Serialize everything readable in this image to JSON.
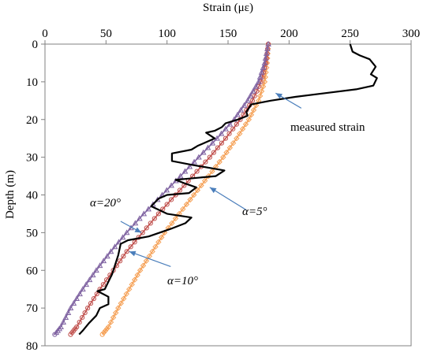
{
  "chart_data": {
    "type": "line",
    "title": "",
    "xlabel": "Strain (με)",
    "ylabel": "Depth (m)",
    "xlim": [
      0,
      300
    ],
    "ylim": [
      0,
      80
    ],
    "y_inverted": true,
    "x_axis_position": "top",
    "x_ticks": [
      0,
      50,
      100,
      150,
      200,
      250,
      300
    ],
    "y_ticks": [
      0,
      10,
      20,
      30,
      40,
      50,
      60,
      70,
      80
    ],
    "grid": false,
    "legend": "none",
    "series": [
      {
        "name": "measured strain",
        "color": "#000000",
        "marker": "none",
        "points": [
          [
            250,
            0
          ],
          [
            252,
            2
          ],
          [
            258,
            3
          ],
          [
            266,
            4
          ],
          [
            271,
            6
          ],
          [
            267,
            8
          ],
          [
            272,
            9
          ],
          [
            269,
            11
          ],
          [
            255,
            12
          ],
          [
            230,
            13
          ],
          [
            205,
            14
          ],
          [
            185,
            15
          ],
          [
            169,
            16
          ],
          [
            165,
            18
          ],
          [
            166,
            19
          ],
          [
            158,
            20
          ],
          [
            148,
            21
          ],
          [
            145,
            22
          ],
          [
            139,
            23
          ],
          [
            132,
            23.5
          ],
          [
            139,
            25
          ],
          [
            132,
            26
          ],
          [
            125,
            27
          ],
          [
            120,
            28
          ],
          [
            104,
            29
          ],
          [
            104,
            31
          ],
          [
            120,
            32
          ],
          [
            147,
            33.5
          ],
          [
            140,
            35
          ],
          [
            107,
            36
          ],
          [
            115,
            37
          ],
          [
            124,
            38
          ],
          [
            118,
            39.5
          ],
          [
            100,
            40
          ],
          [
            93,
            41
          ],
          [
            87,
            43
          ],
          [
            100,
            45
          ],
          [
            120,
            46
          ],
          [
            115,
            47.5
          ],
          [
            103,
            49
          ],
          [
            85,
            51
          ],
          [
            68,
            52
          ],
          [
            62,
            53
          ],
          [
            60,
            56
          ],
          [
            58,
            58
          ],
          [
            55,
            61
          ],
          [
            52,
            63
          ],
          [
            49,
            65
          ],
          [
            43,
            65.5
          ],
          [
            52,
            67
          ],
          [
            52,
            69
          ],
          [
            45,
            70
          ],
          [
            42,
            72
          ],
          [
            36,
            74
          ],
          [
            31,
            76
          ],
          [
            28,
            77
          ]
        ]
      },
      {
        "name": "α=5°",
        "color": "#f5a055",
        "marker": "diamond",
        "points": [
          [
            183,
            0
          ],
          [
            182,
            5
          ],
          [
            180,
            10
          ],
          [
            175,
            15
          ],
          [
            167,
            20
          ],
          [
            157,
            25
          ],
          [
            146,
            30
          ],
          [
            134,
            35
          ],
          [
            122,
            40
          ],
          [
            110,
            45
          ],
          [
            98,
            50
          ],
          [
            88,
            55
          ],
          [
            78,
            60
          ],
          [
            69,
            65
          ],
          [
            60,
            70
          ],
          [
            52,
            75
          ],
          [
            47,
            77
          ]
        ]
      },
      {
        "name": "α=10°",
        "color": "#c0504d",
        "marker": "circle",
        "points": [
          [
            183,
            0
          ],
          [
            181,
            5
          ],
          [
            177,
            10
          ],
          [
            170,
            15
          ],
          [
            160,
            20
          ],
          [
            148,
            25
          ],
          [
            135,
            30
          ],
          [
            121,
            35
          ],
          [
            107,
            40
          ],
          [
            93,
            45
          ],
          [
            80,
            50
          ],
          [
            67,
            55
          ],
          [
            56,
            60
          ],
          [
            45,
            65
          ],
          [
            35,
            70
          ],
          [
            26,
            75
          ],
          [
            21,
            77
          ]
        ]
      },
      {
        "name": "α=20°",
        "color": "#8064a2",
        "marker": "triangle",
        "points": [
          [
            183,
            0
          ],
          [
            180,
            5
          ],
          [
            175,
            10
          ],
          [
            166,
            15
          ],
          [
            155,
            20
          ],
          [
            141,
            25
          ],
          [
            126,
            30
          ],
          [
            111,
            35
          ],
          [
            96,
            40
          ],
          [
            81,
            45
          ],
          [
            67,
            50
          ],
          [
            54,
            55
          ],
          [
            42,
            60
          ],
          [
            31,
            65
          ],
          [
            21,
            70
          ],
          [
            13,
            75
          ],
          [
            8,
            77
          ]
        ]
      }
    ],
    "annotations": [
      {
        "text": "measured strain",
        "arrow_from": [
          210,
          17
        ],
        "arrow_to": [
          189,
          13
        ]
      },
      {
        "text": "α=5°",
        "arrow_from": [
          165,
          44
        ],
        "arrow_to": [
          135,
          38
        ]
      },
      {
        "text": "α=10°",
        "arrow_from": [
          103,
          59
        ],
        "arrow_to": [
          69,
          55
        ]
      },
      {
        "text": "α=20°",
        "arrow_from": [
          62,
          47
        ],
        "arrow_to": [
          79,
          50
        ]
      }
    ]
  }
}
